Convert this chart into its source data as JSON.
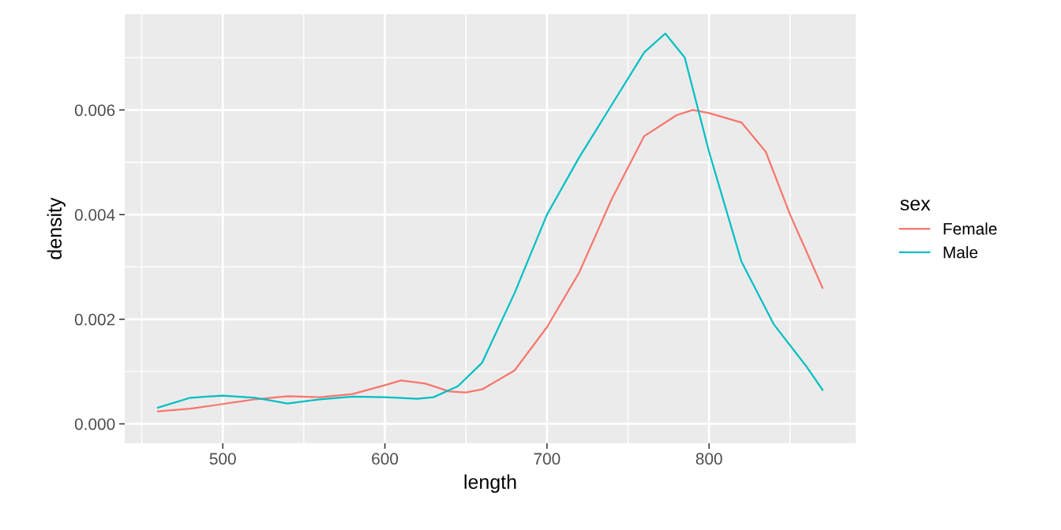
{
  "chart_data": {
    "type": "line",
    "xlabel": "length",
    "ylabel": "density",
    "legend_title": "sex",
    "legend": "right",
    "grid": true,
    "marker": "none",
    "line_style": "solid",
    "xlim": [
      439.5,
      890.5
    ],
    "ylim": [
      -0.00037,
      0.00783
    ],
    "xticks": [
      {
        "value": 450,
        "label": null
      },
      500,
      {
        "value": 550,
        "label": null
      },
      600,
      {
        "value": 650,
        "label": null
      },
      700,
      {
        "value": 750,
        "label": null
      },
      800,
      {
        "value": 850,
        "label": null
      }
    ],
    "yticks": [
      "0.000",
      {
        "value": 0.001,
        "label": null
      },
      {
        "value": 0.002,
        "label": "0.002"
      },
      {
        "value": 0.003,
        "label": null
      },
      {
        "value": 0.004,
        "label": "0.004"
      },
      {
        "value": 0.005,
        "label": null
      },
      {
        "value": 0.006,
        "label": "0.006"
      },
      {
        "value": 0.007,
        "label": null
      }
    ],
    "series": [
      {
        "name": "Female",
        "color": "#f8766d",
        "x": [
          460,
          480,
          500,
          520,
          540,
          560,
          580,
          600,
          610,
          625,
          640,
          650,
          660,
          680,
          700,
          720,
          740,
          760,
          780,
          790,
          800,
          820,
          835,
          850,
          870
        ],
        "values": [
          0.00024,
          0.00029,
          0.00038,
          0.00047,
          0.00053,
          0.00051,
          0.00057,
          0.00074,
          0.00083,
          0.00077,
          0.00062,
          0.0006,
          0.00066,
          0.00102,
          0.00185,
          0.0029,
          0.0043,
          0.0055,
          0.0059,
          0.006,
          0.00594,
          0.00576,
          0.0052,
          0.004,
          0.0026
        ]
      },
      {
        "name": "Male",
        "color": "#00bfc4",
        "x": [
          460,
          480,
          500,
          520,
          540,
          560,
          580,
          600,
          620,
          630,
          645,
          660,
          680,
          700,
          720,
          740,
          760,
          773,
          785,
          800,
          820,
          840,
          860,
          870
        ],
        "values": [
          0.00031,
          0.0005,
          0.00054,
          0.0005,
          0.00039,
          0.00047,
          0.00052,
          0.00051,
          0.00048,
          0.00051,
          0.00072,
          0.00117,
          0.0025,
          0.004,
          0.0051,
          0.0061,
          0.0071,
          0.00746,
          0.007,
          0.0052,
          0.0031,
          0.0019,
          0.0011,
          0.00065
        ]
      }
    ]
  }
}
